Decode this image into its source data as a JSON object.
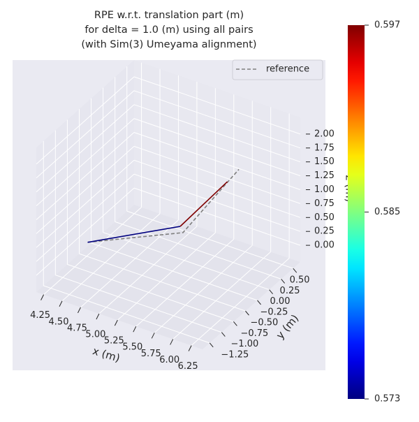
{
  "chart_data": {
    "type": "line3d",
    "title": [
      "RPE w.r.t. translation part (m)",
      "for delta = 1.0 (m) using all pairs",
      "(with Sim(3) Umeyama alignment)"
    ],
    "xlabel": "x (m)",
    "ylabel": "y (m)",
    "zlabel": "z (m)",
    "xlim": [
      4.15,
      6.4
    ],
    "ylim": [
      -1.4,
      0.65
    ],
    "zlim": [
      -0.3,
      2.3
    ],
    "xticks": [
      4.25,
      {
        "value": 4.5,
        "label": "4.50"
      },
      4.75,
      {
        "value": 5,
        "label": "5.00"
      },
      5.25,
      {
        "value": 5.5,
        "label": "5.50"
      },
      5.75,
      {
        "value": 6,
        "label": "6.00"
      },
      6.25
    ],
    "yticks": [
      {
        "value": -1.25,
        "label": "−1.25"
      },
      {
        "value": -1,
        "label": "−1.00"
      },
      {
        "value": -0.75,
        "label": "−0.75"
      },
      {
        "value": -0.5,
        "label": "−0.50"
      },
      {
        "value": -0.25,
        "label": "−0.25"
      },
      {
        "value": 0,
        "label": "0.00"
      },
      0.25,
      {
        "value": 0.5,
        "label": "0.50"
      }
    ],
    "zticks": [
      {
        "value": 0,
        "label": "0.00"
      },
      0.25,
      {
        "value": 0.5,
        "label": "0.50"
      },
      0.75,
      {
        "value": 1,
        "label": "1.00"
      },
      1.25,
      {
        "value": 1.5,
        "label": "1.50"
      },
      1.75,
      {
        "value": 2,
        "label": "2.00"
      }
    ],
    "grid": true,
    "legend": "upper right",
    "series": [
      {
        "name": "reference",
        "color": "#7f7f7f",
        "linestyle": "dashed",
        "x": [
          4.29,
          5.115,
          5.73
        ],
        "y": [
          -0.54,
          0.18,
          0.4
        ],
        "z": [
          0,
          0,
          1.25
        ]
      }
    ],
    "trajectory": {
      "x": [
        4.29,
        5.02,
        5.6
      ],
      "y": [
        -0.54,
        0.27,
        0.36
      ],
      "z": [
        0,
        0,
        1.0
      ],
      "colors": [
        "#00007f",
        "#7f0000"
      ]
    },
    "colorbar": {
      "colormap": "jet",
      "clim": [
        0.573,
        0.597
      ],
      "ticks": [
        0.573,
        0.585,
        0.597
      ]
    }
  }
}
